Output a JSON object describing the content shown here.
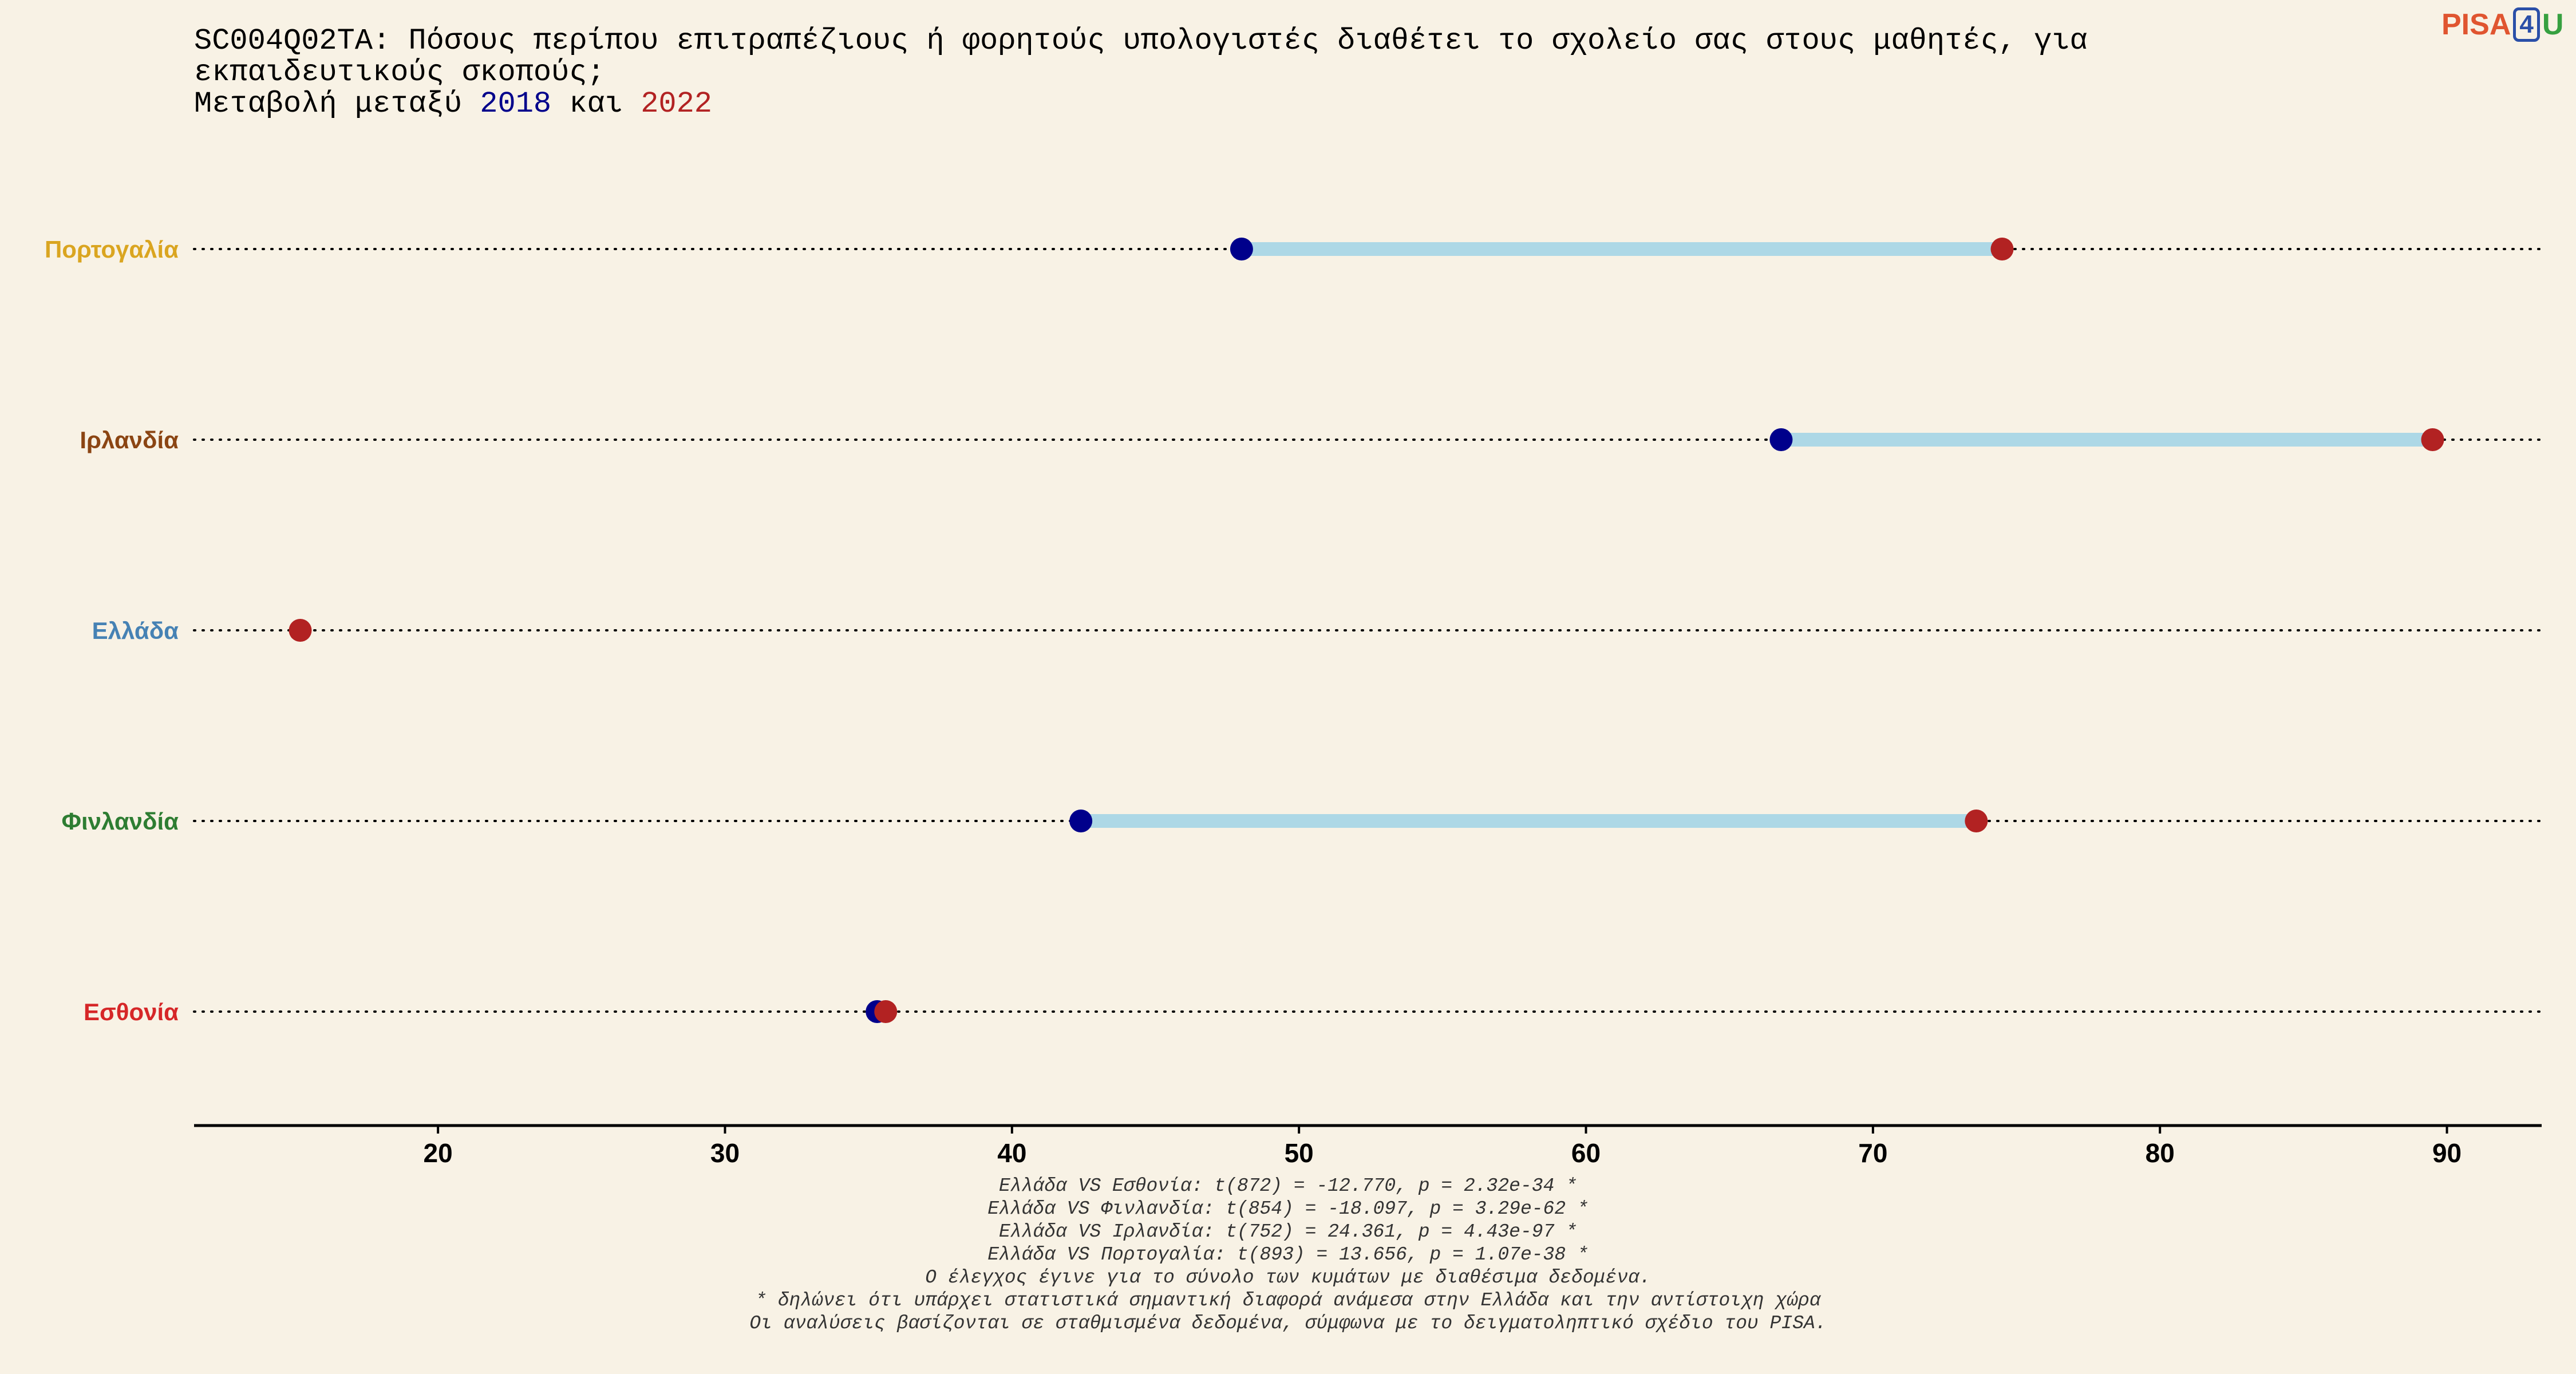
{
  "title": {
    "line1": "SC004Q02TA: Πόσους περίπου επιτραπέζιους ή φορητούς υπολογιστές διαθέτει το σχολείο σας στους μαθητές, για",
    "line2": "εκπαιδευτικούς σκοπούς;",
    "line3_prefix": "Μεταβολή μεταξύ",
    "year_a": "2018",
    "conj": "και",
    "year_b": "2022"
  },
  "logo": {
    "part1": "PISA",
    "part2": "4",
    "part3": "U"
  },
  "colors": {
    "background": "#f8f2e5",
    "year_2018": "#00008b",
    "year_2022": "#b22222",
    "connector": "#add8e6",
    "guide": "#000000"
  },
  "chart_data": {
    "type": "dumbbell",
    "categories": [
      "Πορτογαλία",
      "Ιρλανδία",
      "Ελλάδα",
      "Φινλανδία",
      "Εσθονία"
    ],
    "category_colors": [
      "#daa520",
      "#8b4513",
      "#4682b4",
      "#2e7d32",
      "#d62728"
    ],
    "series": [
      {
        "name": "2018",
        "values": [
          48.0,
          66.8,
          null,
          42.4,
          35.3
        ]
      },
      {
        "name": "2022",
        "values": [
          74.5,
          89.5,
          15.2,
          73.6,
          35.6
        ]
      }
    ],
    "x_ticks": [
      20,
      30,
      40,
      50,
      60,
      70,
      80,
      90
    ],
    "xlim": [
      11.5,
      93.3
    ],
    "grid": false
  },
  "footnotes": [
    "Ελλάδα VS Εσθονία: t(872) = -12.770, p = 2.32e-34 *",
    "Ελλάδα VS Φινλανδία: t(854) = -18.097, p = 3.29e-62 *",
    "Ελλάδα VS Ιρλανδία: t(752) = 24.361, p = 4.43e-97 *",
    "Ελλάδα VS Πορτογαλία: t(893) = 13.656, p = 1.07e-38 *",
    "Ο έλεγχος έγινε για το σύνολο των κυμάτων με διαθέσιμα δεδομένα.",
    "* δηλώνει ότι υπάρχει στατιστικά σημαντική διαφορά ανάμεσα στην Ελλάδα και την αντίστοιχη χώρα",
    "Οι αναλύσεις βασίζονται σε σταθμισμένα δεδομένα, σύμφωνα με το δειγματοληπτικό σχέδιο του PISA."
  ]
}
